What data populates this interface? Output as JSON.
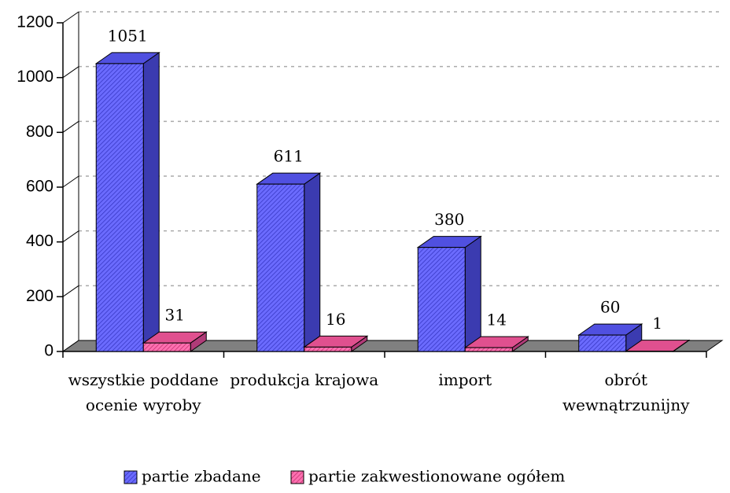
{
  "chart_data": {
    "type": "bar3d",
    "categories": [
      "wszystkie poddane ocenie wyroby",
      "produkcja krajowa",
      "import",
      "obrót wewnątrzunijny"
    ],
    "series": [
      {
        "name": "partie zbadane",
        "color": "#6b6bff",
        "values": [
          1051,
          611,
          380,
          60
        ]
      },
      {
        "name": "partie zakwestionowane ogółem",
        "color": "#ff70b0",
        "values": [
          31,
          16,
          14,
          1
        ]
      }
    ],
    "ylim": [
      0,
      1200
    ],
    "yticks": [
      0,
      200,
      400,
      600,
      800,
      1000,
      1200
    ],
    "grid": true
  }
}
